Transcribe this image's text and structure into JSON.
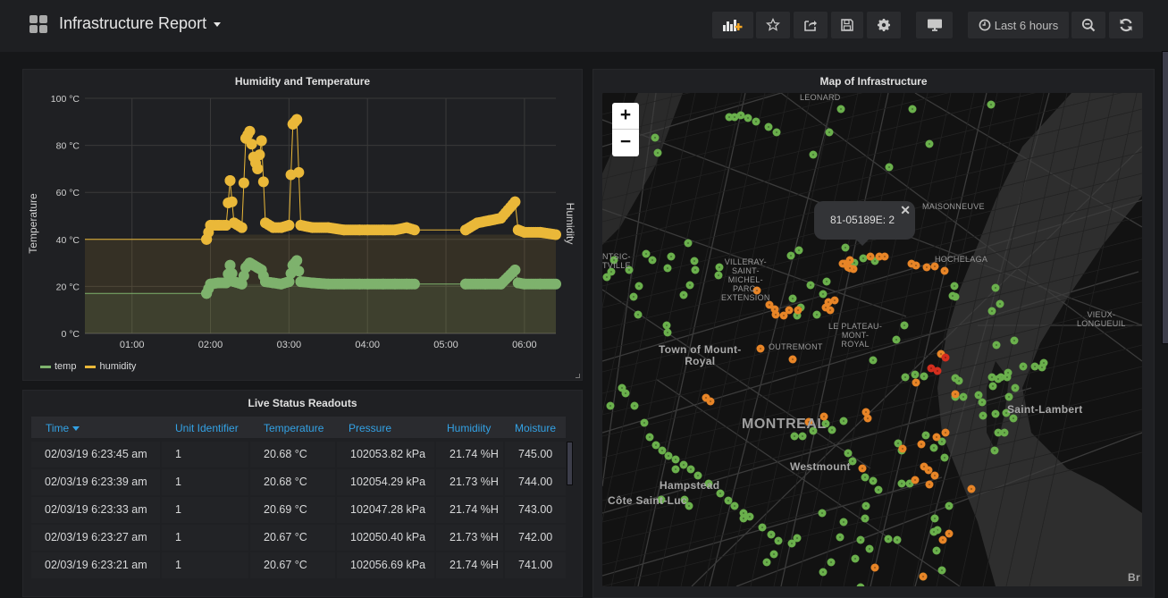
{
  "topbar": {
    "title": "Infrastructure Report",
    "time_range": "Last 6 hours",
    "buttons": [
      "add-panel",
      "star",
      "share",
      "save",
      "settings",
      "tv-mode",
      "time-picker",
      "zoom-out",
      "refresh"
    ]
  },
  "chart_panel": {
    "title": "Humidity and Temperature",
    "y_left_label": "Temperature",
    "y_right_label": "Humidity",
    "legend": [
      "temp",
      "humidity"
    ]
  },
  "chart_data": {
    "type": "scatter",
    "title": "Humidity and Temperature",
    "xlabel": "",
    "ylabel": "Temperature",
    "ylabel_right": "Humidity",
    "x_ticks": [
      "01:00",
      "02:00",
      "03:00",
      "04:00",
      "05:00",
      "06:00"
    ],
    "y_ticks": [
      "0 °C",
      "20 °C",
      "40 °C",
      "60 °C",
      "80 °C",
      "100 °C"
    ],
    "ylim": [
      0,
      100
    ],
    "xlim_hours": [
      0.4,
      6.4
    ],
    "grid": true,
    "legend_position": "bottom-left",
    "series": [
      {
        "name": "temp",
        "color": "#7eb26d",
        "points": [
          [
            0.4,
            17
          ],
          [
            1.95,
            17
          ],
          [
            2.0,
            21
          ],
          [
            2.1,
            21.5
          ],
          [
            2.2,
            21.5
          ],
          [
            2.25,
            29
          ],
          [
            2.3,
            22
          ],
          [
            2.4,
            21
          ],
          [
            2.45,
            28
          ],
          [
            2.5,
            30
          ],
          [
            2.55,
            29
          ],
          [
            2.6,
            28
          ],
          [
            2.65,
            27
          ],
          [
            2.7,
            22
          ],
          [
            2.8,
            21.5
          ],
          [
            2.9,
            21
          ],
          [
            3.0,
            22
          ],
          [
            3.05,
            29
          ],
          [
            3.1,
            31
          ],
          [
            3.15,
            22
          ],
          [
            3.3,
            21.5
          ],
          [
            3.5,
            21
          ],
          [
            3.7,
            21
          ],
          [
            3.9,
            21
          ],
          [
            4.0,
            21
          ],
          [
            4.2,
            21
          ],
          [
            4.35,
            21
          ],
          [
            4.5,
            21
          ],
          [
            4.6,
            21
          ],
          [
            5.25,
            21
          ],
          [
            5.5,
            21
          ],
          [
            5.7,
            21
          ],
          [
            5.88,
            27
          ],
          [
            5.92,
            21.5
          ],
          [
            6.0,
            21
          ],
          [
            6.2,
            21
          ],
          [
            6.4,
            21
          ]
        ]
      },
      {
        "name": "humidity",
        "color": "#eab839",
        "points": [
          [
            0.4,
            40
          ],
          [
            1.95,
            40
          ],
          [
            2.0,
            46
          ],
          [
            2.1,
            46
          ],
          [
            2.2,
            46
          ],
          [
            2.25,
            65
          ],
          [
            2.3,
            47
          ],
          [
            2.4,
            45
          ],
          [
            2.45,
            83
          ],
          [
            2.5,
            86
          ],
          [
            2.55,
            75
          ],
          [
            2.6,
            70
          ],
          [
            2.65,
            82
          ],
          [
            2.7,
            47
          ],
          [
            2.8,
            45
          ],
          [
            2.9,
            45
          ],
          [
            3.0,
            46
          ],
          [
            3.05,
            89
          ],
          [
            3.1,
            91
          ],
          [
            3.15,
            46
          ],
          [
            3.3,
            45
          ],
          [
            3.5,
            45
          ],
          [
            3.7,
            44
          ],
          [
            3.9,
            44
          ],
          [
            4.0,
            44
          ],
          [
            4.2,
            44
          ],
          [
            4.35,
            44
          ],
          [
            4.5,
            45
          ],
          [
            4.6,
            44
          ],
          [
            5.25,
            44
          ],
          [
            5.4,
            47
          ],
          [
            5.55,
            48
          ],
          [
            5.7,
            49
          ],
          [
            5.88,
            56
          ],
          [
            5.92,
            44
          ],
          [
            6.0,
            43
          ],
          [
            6.2,
            43
          ],
          [
            6.4,
            42
          ]
        ]
      }
    ]
  },
  "table_panel": {
    "title": "Live Status Readouts",
    "columns": [
      "Time",
      "Unit Identifier",
      "Temperature",
      "Pressure",
      "Humidiity",
      "Moisture"
    ],
    "sort_column": "Time",
    "rows": [
      [
        "02/03/19 6:23:45 am",
        "1",
        "20.68 °C",
        "102053.82 kPa",
        "21.74 %H",
        "745.00"
      ],
      [
        "02/03/19 6:23:39 am",
        "1",
        "20.68 °C",
        "102054.29 kPa",
        "21.73 %H",
        "744.00"
      ],
      [
        "02/03/19 6:23:33 am",
        "1",
        "20.69 °C",
        "102047.28 kPa",
        "21.74 %H",
        "743.00"
      ],
      [
        "02/03/19 6:23:27 am",
        "1",
        "20.67 °C",
        "102050.40 kPa",
        "21.73 %H",
        "742.00"
      ],
      [
        "02/03/19 6:23:21 am",
        "1",
        "20.67 °C",
        "102056.69 kPa",
        "21.74 %H",
        "741.00"
      ]
    ]
  },
  "map_panel": {
    "title": "Map of Infrastructure",
    "zoom_in": "+",
    "zoom_out": "−",
    "popup_text": "81-05189E: 2",
    "popup_close": "✕",
    "marker_colors": {
      "ok": "#6ab04c",
      "warn": "#e88527",
      "alert": "#d42e1e"
    },
    "labels": {
      "leonard": "LEONARD",
      "maisonneuve": "MAISONNEUVE",
      "hochelaga": "HOCHELAGA",
      "villeray": "VILLERAY-\nSAINT-\nMICHEL-\nPARC-\nEXTENSION",
      "plateau": "LE PLATEAU-\nMONT-\nROYAL",
      "outremont": "OUTREMONT",
      "town_mount_royal": "Town of Mount-\nRoyal",
      "montreal": "MONTREAL",
      "westmount": "Westmount",
      "hampstead": "Hampstead",
      "cote_saint_luc": "Côte Saint-Luc",
      "vieux_longueuil": "VIEUX-\nLONGUEUIL",
      "saint_lambert": "Saint-Lambert",
      "ahuntsic": "NTSIC-\nTVILLE",
      "brossard": "Br"
    }
  }
}
